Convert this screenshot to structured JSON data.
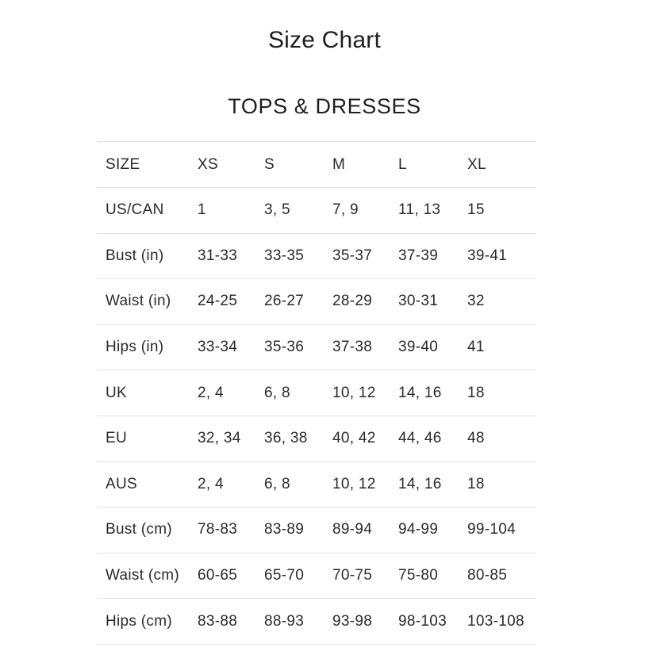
{
  "page": {
    "title": "Size Chart",
    "section_title": "TOPS & DRESSES"
  },
  "table": {
    "header": [
      "SIZE",
      "XS",
      "S",
      "M",
      "L",
      "XL"
    ],
    "rows": [
      {
        "label": "US/CAN",
        "values": [
          "1",
          "3, 5",
          "7, 9",
          "11, 13",
          "15"
        ]
      },
      {
        "label": "Bust (in)",
        "values": [
          "31-33",
          "33-35",
          "35-37",
          "37-39",
          "39-41"
        ]
      },
      {
        "label": "Waist (in)",
        "values": [
          "24-25",
          "26-27",
          "28-29",
          "30-31",
          "32"
        ]
      },
      {
        "label": "Hips (in)",
        "values": [
          "33-34",
          "35-36",
          "37-38",
          "39-40",
          "41"
        ]
      },
      {
        "label": "UK",
        "values": [
          "2, 4",
          "6, 8",
          "10, 12",
          "14, 16",
          "18"
        ]
      },
      {
        "label": "EU",
        "values": [
          "32, 34",
          "36, 38",
          "40, 42",
          "44, 46",
          "48"
        ]
      },
      {
        "label": "AUS",
        "values": [
          "2, 4",
          "6, 8",
          "10, 12",
          "14, 16",
          "18"
        ]
      },
      {
        "label": "Bust (cm)",
        "values": [
          "78-83",
          "83-89",
          "89-94",
          "94-99",
          "99-104"
        ]
      },
      {
        "label": "Waist (cm)",
        "values": [
          "60-65",
          "65-70",
          "70-75",
          "75-80",
          "80-85"
        ]
      },
      {
        "label": "Hips (cm)",
        "values": [
          "83-88",
          "88-93",
          "93-98",
          "98-103",
          "103-108"
        ]
      }
    ]
  },
  "colors": {
    "text": "#2b2b2b",
    "heading_text": "#1f1f1f",
    "divider": "#e3e3e3",
    "background": "#ffffff"
  }
}
